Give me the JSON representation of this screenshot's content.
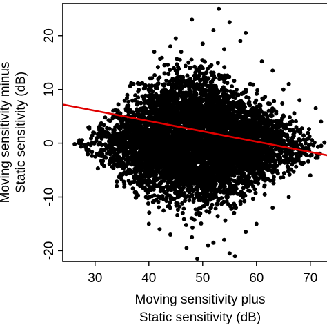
{
  "chart_data": {
    "type": "scatter",
    "title": "",
    "xlabel_lines": [
      "Moving sensitivity plus",
      "Static sensitivity (dB)"
    ],
    "ylabel_lines": [
      "Moving sensitivity minus",
      "Static sensitivity (dB)"
    ],
    "xlim": [
      24,
      74
    ],
    "ylim": [
      -22,
      26
    ],
    "xticks": [
      30,
      40,
      50,
      60,
      70
    ],
    "yticks": [
      -20,
      -10,
      0,
      10,
      20
    ],
    "xtick_labels": [
      "30",
      "40",
      "50",
      "60",
      "70"
    ],
    "ytick_labels": [
      "-20",
      "-10",
      "0",
      "10",
      "20"
    ],
    "grid": false,
    "point_color": "#000000",
    "regression_line": {
      "color": "#e00000",
      "x": [
        24,
        74
      ],
      "y": [
        7.2,
        -2.4
      ]
    },
    "point_cloud_envelope": {
      "x": [
        25,
        30,
        35,
        40,
        45,
        50,
        55,
        60,
        65,
        70,
        74
      ],
      "upper": [
        0.5,
        6,
        11,
        15,
        18,
        19,
        15,
        12,
        9,
        4,
        1
      ],
      "lower": [
        -1,
        -6,
        -11,
        -14,
        -16,
        -17,
        -15,
        -12,
        -9,
        -5,
        -2
      ],
      "approx_point_count": 6500
    },
    "outlier_points": [
      {
        "x": 53,
        "y": 25
      },
      {
        "x": 48,
        "y": 23
      },
      {
        "x": 55,
        "y": 22.5
      },
      {
        "x": 52,
        "y": 21
      },
      {
        "x": 58,
        "y": 20.5
      },
      {
        "x": 45,
        "y": 19.5
      },
      {
        "x": 57,
        "y": 19
      },
      {
        "x": 50,
        "y": 18.5
      },
      {
        "x": 44,
        "y": 18
      },
      {
        "x": 46,
        "y": 17
      },
      {
        "x": 54,
        "y": 17.5
      },
      {
        "x": 41,
        "y": 17
      },
      {
        "x": 61,
        "y": 15.2
      },
      {
        "x": 63,
        "y": 13.5
      },
      {
        "x": 66,
        "y": 11
      },
      {
        "x": 68,
        "y": 8
      },
      {
        "x": 71,
        "y": 6.5
      },
      {
        "x": 72,
        "y": 4
      },
      {
        "x": 65,
        "y": 10
      },
      {
        "x": 49,
        "y": -21.5
      },
      {
        "x": 55,
        "y": -20.5
      },
      {
        "x": 56,
        "y": -21
      },
      {
        "x": 47,
        "y": -19.5
      },
      {
        "x": 51,
        "y": -19
      },
      {
        "x": 54,
        "y": -18
      },
      {
        "x": 44,
        "y": -17
      },
      {
        "x": 52,
        "y": -18.5
      },
      {
        "x": 48,
        "y": -17.5
      },
      {
        "x": 40,
        "y": -15
      },
      {
        "x": 42,
        "y": -16
      },
      {
        "x": 60,
        "y": -15
      },
      {
        "x": 58,
        "y": -16.5
      },
      {
        "x": 63,
        "y": -12
      },
      {
        "x": 66,
        "y": -10
      },
      {
        "x": 70,
        "y": -6
      }
    ]
  }
}
